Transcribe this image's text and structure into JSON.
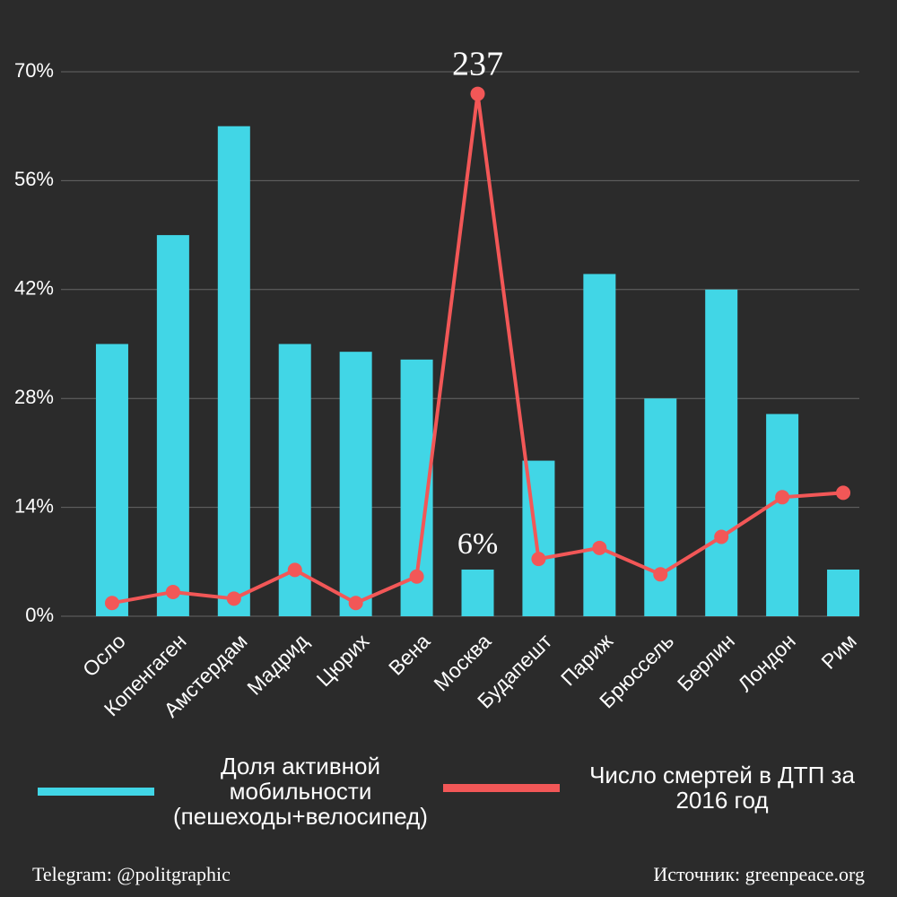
{
  "chart_data": {
    "type": "bar",
    "categories": [
      "Осло",
      "Копенгаген",
      "Амстердам",
      "Мадрид",
      "Цюрих",
      "Вена",
      "Москва",
      "Будапешт",
      "Париж",
      "Брюссель",
      "Берлин",
      "Лондон",
      "Рим"
    ],
    "series": [
      {
        "name": "Доля активной мобильности (пешеходы+велосипед)",
        "type": "bar",
        "color": "#41d6e6",
        "values": [
          35,
          49,
          63,
          35,
          34,
          33,
          6,
          20,
          44,
          28,
          42,
          26,
          6
        ],
        "value_labels": [
          null,
          null,
          null,
          null,
          null,
          null,
          "6%",
          null,
          null,
          null,
          null,
          null,
          null
        ]
      },
      {
        "name": "Число смертей в ДТП за 2016 год",
        "type": "line",
        "color": "#f25757",
        "axis": "y2",
        "values": [
          6,
          11,
          8,
          21,
          6,
          18,
          237,
          26,
          31,
          19,
          36,
          54,
          56
        ],
        "labeled": [
          6
        ]
      }
    ],
    "ylim": [
      0,
      70
    ],
    "yticks": [
      {
        "value": 0,
        "label": "0%"
      },
      {
        "value": 14,
        "label": "14%"
      },
      {
        "value": 28,
        "label": "28%"
      },
      {
        "value": 42,
        "label": "42%"
      },
      {
        "value": 56,
        "label": "56%"
      },
      {
        "value": 70,
        "label": "70%"
      }
    ],
    "y2lim": [
      0,
      247
    ],
    "grid": true,
    "source_left": "Telegram: @politgraphic",
    "source_right": "Источник: greenpeace.org"
  }
}
